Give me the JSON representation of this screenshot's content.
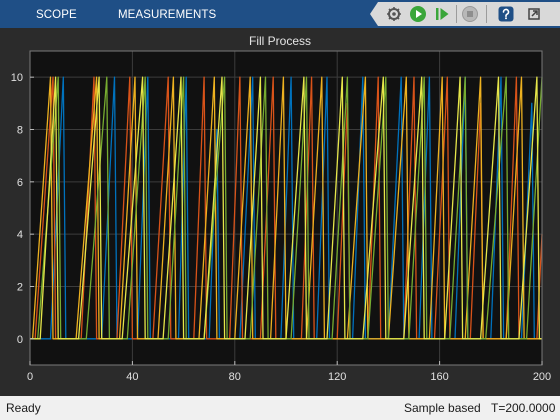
{
  "toolbar": {
    "tabs": [
      {
        "label": "SCOPE"
      },
      {
        "label": "MEASUREMENTS"
      }
    ],
    "buttons": [
      {
        "icon": "settings-gear-icon"
      },
      {
        "icon": "run-icon"
      },
      {
        "icon": "step-forward-icon"
      },
      {
        "icon": "stop-icon"
      },
      {
        "icon": "help-icon"
      },
      {
        "icon": "undock-icon"
      }
    ],
    "colors": {
      "background": "#1f4f86",
      "run": "#3aa63a",
      "help": "#1f4f86"
    }
  },
  "chart_data": {
    "type": "line",
    "title": "Fill Process",
    "xlabel": "",
    "ylabel": "",
    "xlim": [
      0,
      200
    ],
    "ylim": [
      -1,
      11
    ],
    "x_ticks": [
      0,
      40,
      80,
      120,
      160,
      200
    ],
    "y_ticks": [
      0,
      2,
      4,
      6,
      8,
      10
    ],
    "grid": true,
    "background": "#111111",
    "series": [
      {
        "color": "#0072bd",
        "points": [
          [
            0,
            0
          ],
          [
            8,
            0
          ],
          [
            13,
            10
          ],
          [
            14,
            0
          ],
          [
            28,
            0
          ],
          [
            33,
            10
          ],
          [
            34,
            0
          ],
          [
            42,
            0
          ],
          [
            46,
            10
          ],
          [
            47,
            0
          ],
          [
            58,
            0
          ],
          [
            61,
            10
          ],
          [
            62,
            0
          ],
          [
            70,
            0
          ],
          [
            73,
            8
          ],
          [
            74,
            0
          ],
          [
            82,
            0
          ],
          [
            87,
            10
          ],
          [
            88,
            0
          ],
          [
            98,
            0
          ],
          [
            102,
            10
          ],
          [
            103,
            0
          ],
          [
            112,
            0
          ],
          [
            116,
            10
          ],
          [
            117,
            0
          ],
          [
            126,
            0
          ],
          [
            130,
            10
          ],
          [
            131,
            0
          ],
          [
            140,
            0
          ],
          [
            145,
            10
          ],
          [
            146,
            0
          ],
          [
            152,
            0
          ],
          [
            156,
            10
          ],
          [
            157,
            0
          ],
          [
            166,
            0
          ],
          [
            170,
            10
          ],
          [
            171,
            0
          ],
          [
            180,
            0
          ],
          [
            184,
            10
          ],
          [
            185,
            0
          ],
          [
            192,
            0
          ],
          [
            196,
            9
          ],
          [
            197,
            0
          ],
          [
            200,
            0
          ]
        ]
      },
      {
        "color": "#d95319",
        "points": [
          [
            0,
            0
          ],
          [
            2,
            0
          ],
          [
            9,
            10
          ],
          [
            10,
            0
          ],
          [
            20,
            0
          ],
          [
            25,
            10
          ],
          [
            26,
            0
          ],
          [
            34,
            0
          ],
          [
            39,
            10
          ],
          [
            40,
            0
          ],
          [
            48,
            0
          ],
          [
            54,
            10
          ],
          [
            55,
            0
          ],
          [
            64,
            0
          ],
          [
            68,
            10
          ],
          [
            69,
            0
          ],
          [
            78,
            0
          ],
          [
            82,
            10
          ],
          [
            83,
            0
          ],
          [
            90,
            0
          ],
          [
            95,
            10
          ],
          [
            96,
            0
          ],
          [
            106,
            0
          ],
          [
            110,
            10
          ],
          [
            111,
            0
          ],
          [
            120,
            0
          ],
          [
            124,
            9
          ],
          [
            125,
            0
          ],
          [
            132,
            0
          ],
          [
            136,
            10
          ],
          [
            137,
            0
          ],
          [
            146,
            0
          ],
          [
            150,
            10
          ],
          [
            151,
            0
          ],
          [
            158,
            0
          ],
          [
            163,
            10
          ],
          [
            164,
            0
          ],
          [
            172,
            0
          ],
          [
            176,
            9
          ],
          [
            177,
            0
          ],
          [
            186,
            0
          ],
          [
            190,
            10
          ],
          [
            191,
            0
          ],
          [
            198,
            0
          ],
          [
            200,
            4
          ]
        ]
      },
      {
        "color": "#edb120",
        "points": [
          [
            0,
            0
          ],
          [
            1,
            0
          ],
          [
            8,
            10
          ],
          [
            9,
            0
          ],
          [
            18,
            0
          ],
          [
            26,
            10
          ],
          [
            27,
            0
          ],
          [
            35,
            0
          ],
          [
            41,
            10
          ],
          [
            42,
            0
          ],
          [
            50,
            0
          ],
          [
            56,
            10
          ],
          [
            57,
            0
          ],
          [
            66,
            0
          ],
          [
            72,
            10
          ],
          [
            73,
            0
          ],
          [
            80,
            0
          ],
          [
            86,
            10
          ],
          [
            87,
            0
          ],
          [
            94,
            0
          ],
          [
            99,
            10
          ],
          [
            100,
            0
          ],
          [
            108,
            0
          ],
          [
            114,
            10
          ],
          [
            115,
            0
          ],
          [
            124,
            0
          ],
          [
            131,
            10
          ],
          [
            132,
            0
          ],
          [
            140,
            0
          ],
          [
            147,
            10
          ],
          [
            148,
            0
          ],
          [
            156,
            0
          ],
          [
            161,
            10
          ],
          [
            162,
            0
          ],
          [
            170,
            0
          ],
          [
            176,
            10
          ],
          [
            177,
            0
          ],
          [
            186,
            0
          ],
          [
            192,
            10
          ],
          [
            193,
            0
          ],
          [
            200,
            0
          ]
        ]
      },
      {
        "color": "#77ac30",
        "points": [
          [
            0,
            0
          ],
          [
            3,
            0
          ],
          [
            11,
            10
          ],
          [
            12,
            0
          ],
          [
            22,
            0
          ],
          [
            30,
            10
          ],
          [
            31,
            0
          ],
          [
            38,
            0
          ],
          [
            45,
            10
          ],
          [
            46,
            0
          ],
          [
            54,
            0
          ],
          [
            60,
            10
          ],
          [
            61,
            0
          ],
          [
            68,
            0
          ],
          [
            76,
            10
          ],
          [
            77,
            0
          ],
          [
            86,
            0
          ],
          [
            92,
            10
          ],
          [
            93,
            0
          ],
          [
            102,
            0
          ],
          [
            108,
            10
          ],
          [
            109,
            0
          ],
          [
            118,
            0
          ],
          [
            124,
            10
          ],
          [
            125,
            0
          ],
          [
            132,
            0
          ],
          [
            139,
            10
          ],
          [
            140,
            0
          ],
          [
            148,
            0
          ],
          [
            154,
            10
          ],
          [
            155,
            0
          ],
          [
            164,
            0
          ],
          [
            170,
            10
          ],
          [
            171,
            0
          ],
          [
            178,
            0
          ],
          [
            186,
            10
          ],
          [
            187,
            0
          ],
          [
            194,
            0
          ],
          [
            200,
            10
          ]
        ]
      },
      {
        "color": "#e6e64a",
        "points": [
          [
            0,
            0
          ],
          [
            4,
            0
          ],
          [
            10,
            10
          ],
          [
            11,
            0
          ],
          [
            19,
            0
          ],
          [
            27,
            10
          ],
          [
            28,
            0
          ],
          [
            36,
            0
          ],
          [
            44,
            10
          ],
          [
            45,
            0
          ],
          [
            52,
            0
          ],
          [
            59,
            10
          ],
          [
            60,
            0
          ],
          [
            68,
            0
          ],
          [
            75,
            10
          ],
          [
            76,
            0
          ],
          [
            84,
            0
          ],
          [
            90,
            10
          ],
          [
            91,
            0
          ],
          [
            100,
            0
          ],
          [
            107,
            10
          ],
          [
            108,
            0
          ],
          [
            116,
            0
          ],
          [
            122,
            10
          ],
          [
            123,
            0
          ],
          [
            130,
            0
          ],
          [
            138,
            10
          ],
          [
            139,
            0
          ],
          [
            146,
            0
          ],
          [
            153,
            10
          ],
          [
            154,
            0
          ],
          [
            162,
            0
          ],
          [
            168,
            10
          ],
          [
            169,
            0
          ],
          [
            176,
            0
          ],
          [
            183,
            10
          ],
          [
            184,
            0
          ],
          [
            191,
            0
          ],
          [
            198,
            10
          ],
          [
            199,
            0
          ],
          [
            200,
            0
          ]
        ]
      }
    ]
  },
  "status": {
    "left": "Ready",
    "mode": "Sample based",
    "time": "T=200.0000"
  }
}
